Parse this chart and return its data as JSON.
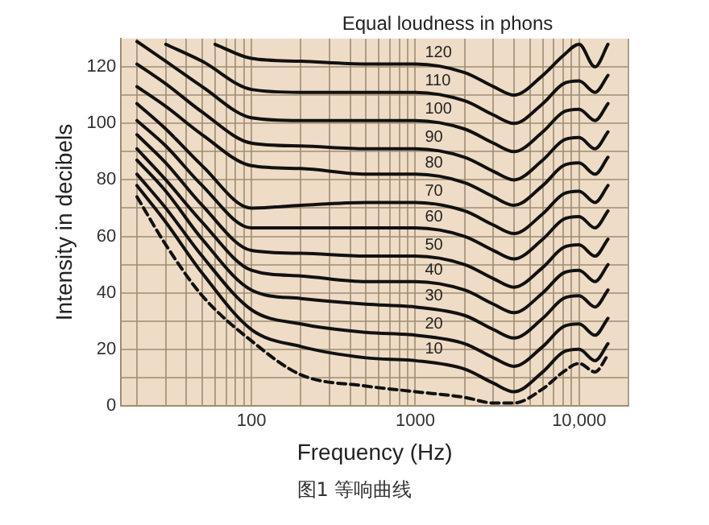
{
  "chart_data": {
    "type": "line",
    "xlabel": "Frequency (Hz)",
    "ylabel": "Intensity in decibels",
    "log": "x",
    "grid": true,
    "legend": false,
    "marker": "none",
    "xlim": [
      16,
      20000
    ],
    "ylim": [
      0,
      130
    ],
    "xticks": [
      {
        "value": 20,
        "label": null
      },
      {
        "value": 30,
        "label": null
      },
      {
        "value": 40,
        "label": null
      },
      {
        "value": 50,
        "label": null
      },
      {
        "value": 60,
        "label": null
      },
      {
        "value": 70,
        "label": null
      },
      {
        "value": 80,
        "label": null
      },
      {
        "value": 90,
        "label": null
      },
      100,
      {
        "value": 200,
        "label": null
      },
      {
        "value": 300,
        "label": null
      },
      {
        "value": 400,
        "label": null
      },
      {
        "value": 500,
        "label": null
      },
      {
        "value": 600,
        "label": null
      },
      {
        "value": 700,
        "label": null
      },
      {
        "value": 800,
        "label": null
      },
      {
        "value": 900,
        "label": null
      },
      1000,
      {
        "value": 2000,
        "label": null
      },
      {
        "value": 3000,
        "label": null
      },
      {
        "value": 4000,
        "label": null
      },
      {
        "value": 5000,
        "label": null
      },
      {
        "value": 6000,
        "label": null
      },
      {
        "value": 7000,
        "label": null
      },
      {
        "value": 8000,
        "label": null
      },
      {
        "value": 9000,
        "label": null
      },
      {
        "value": 10000,
        "label": "10,000"
      },
      {
        "value": 20000,
        "label": null
      }
    ],
    "yticks": [
      0,
      {
        "value": 10,
        "label": null
      },
      20,
      {
        "value": 30,
        "label": null
      },
      40,
      {
        "value": 50,
        "label": null
      },
      60,
      {
        "value": 70,
        "label": null
      },
      80,
      {
        "value": 90,
        "label": null
      },
      100,
      {
        "value": 110,
        "label": null
      },
      120
    ],
    "x": [
      20,
      30,
      50,
      100,
      200,
      500,
      1000,
      2000,
      3000,
      4000,
      6000,
      8000,
      10000,
      12500,
      15000
    ],
    "series": [
      {
        "color": "#111111",
        "line_style": "dashed",
        "values": [
          74,
          57,
          39,
          23,
          11,
          7,
          5,
          3,
          1,
          1,
          6,
          12,
          15,
          12,
          18
        ]
      },
      {
        "name": "10",
        "color": "#111111",
        "values": [
          78,
          65,
          47,
          27,
          21,
          17,
          16,
          13,
          8,
          5,
          12,
          19,
          20,
          16,
          22
        ]
      },
      {
        "name": "20",
        "color": "#111111",
        "values": [
          82,
          70,
          53,
          34,
          29,
          26,
          25,
          22,
          17,
          14,
          21,
          28,
          29,
          25,
          31
        ]
      },
      {
        "name": "30",
        "color": "#111111",
        "values": [
          87,
          76,
          59,
          41,
          38,
          36,
          35,
          32,
          27,
          24,
          31,
          38,
          39,
          35,
          41
        ]
      },
      {
        "name": "40",
        "color": "#111111",
        "values": [
          91,
          80,
          65,
          48,
          46,
          44,
          44,
          41,
          36,
          33,
          40,
          47,
          48,
          44,
          50
        ]
      },
      {
        "name": "50",
        "color": "#111111",
        "values": [
          96,
          86,
          71,
          55,
          54,
          53,
          53,
          50,
          45,
          42,
          49,
          56,
          57,
          53,
          59
        ]
      },
      {
        "name": "60",
        "color": "#111111",
        "values": [
          101,
          92,
          78,
          63,
          63,
          63,
          63,
          60,
          55,
          52,
          59,
          66,
          67,
          63,
          69
        ]
      },
      {
        "name": "70",
        "color": "#111111",
        "values": [
          107,
          98,
          85,
          70,
          71,
          72,
          72,
          69,
          64,
          61,
          68,
          75,
          76,
          72,
          78
        ]
      },
      {
        "name": "80",
        "color": "#111111",
        "values": [
          113,
          106,
          96,
          85,
          84,
          82,
          82,
          79,
          74,
          71,
          78,
          85,
          86,
          82,
          88
        ]
      },
      {
        "name": "90",
        "color": "#111111",
        "values": [
          121,
          114,
          104,
          93,
          92,
          91,
          91,
          88,
          83,
          80,
          87,
          94,
          95,
          91,
          97
        ]
      },
      {
        "name": "100",
        "color": "#111111",
        "values": [
          129,
          122,
          113,
          102,
          101,
          101,
          101,
          98,
          93,
          90,
          97,
          104,
          105,
          101,
          107
        ]
      },
      {
        "name": "110",
        "color": "#111111",
        "x": [
          30,
          50,
          100,
          200,
          500,
          1000,
          2000,
          3000,
          4000,
          6000,
          8000,
          10000,
          12500,
          15000
        ],
        "values": [
          128,
          122,
          112,
          111,
          111,
          111,
          108,
          103,
          100,
          107,
          114,
          115,
          111,
          117
        ]
      },
      {
        "name": "120",
        "color": "#111111",
        "x": [
          60,
          100,
          200,
          500,
          1000,
          2000,
          3000,
          4000,
          6000,
          8000,
          10000,
          12500,
          15000
        ],
        "values": [
          128,
          123,
          122,
          121,
          121,
          118,
          113,
          110,
          117,
          124,
          128,
          120,
          128
        ]
      }
    ],
    "annotations": [
      "Equal loudness in phons",
      "图1 等响曲线"
    ]
  }
}
